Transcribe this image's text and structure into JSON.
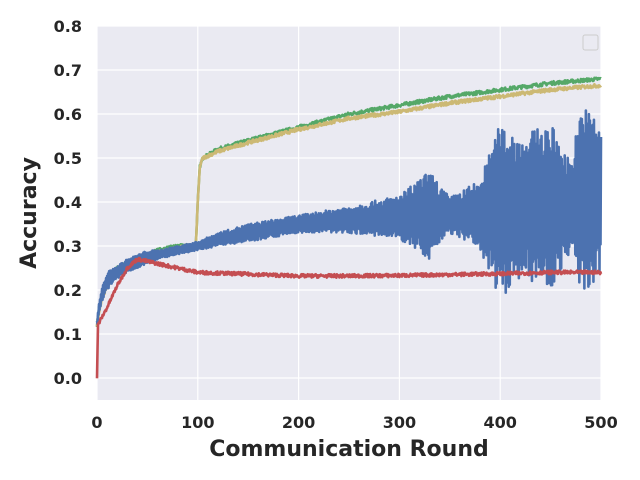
{
  "chart_data": {
    "type": "line",
    "title": "",
    "xlabel": "Communication Round",
    "ylabel": "Accuracy",
    "xlim": [
      0,
      500
    ],
    "ylim": [
      -0.05,
      0.8
    ],
    "x_ticks": [
      0,
      100,
      200,
      300,
      400,
      500
    ],
    "y_ticks": [
      0.0,
      0.1,
      0.2,
      0.3,
      0.4,
      0.5,
      0.6,
      0.7,
      0.8
    ],
    "x_tick_labels": [
      "0",
      "100",
      "200",
      "300",
      "400",
      "500"
    ],
    "y_tick_labels": [
      "0.0",
      "0.1",
      "0.2",
      "0.3",
      "0.4",
      "0.5",
      "0.6",
      "0.7",
      "0.8"
    ],
    "grid": true,
    "legend": "top-right, empty",
    "background": "#eaeaf2",
    "series": [
      {
        "color": "#55a868",
        "style": "mild noise",
        "x": [
          0,
          2,
          5,
          10,
          20,
          30,
          40,
          50,
          60,
          70,
          80,
          90,
          98,
          100,
          102,
          105,
          120,
          150,
          200,
          250,
          300,
          350,
          400,
          450,
          500
        ],
        "y": [
          0.12,
          0.16,
          0.19,
          0.22,
          0.25,
          0.26,
          0.27,
          0.28,
          0.29,
          0.295,
          0.3,
          0.3,
          0.3,
          0.4,
          0.48,
          0.5,
          0.52,
          0.54,
          0.57,
          0.6,
          0.62,
          0.64,
          0.655,
          0.67,
          0.68
        ]
      },
      {
        "color": "#ccb974",
        "style": "mild noise",
        "x": [
          0,
          2,
          5,
          10,
          20,
          30,
          40,
          50,
          60,
          70,
          80,
          90,
          98,
          100,
          102,
          105,
          120,
          150,
          200,
          250,
          300,
          350,
          400,
          450,
          500
        ],
        "y": [
          0.12,
          0.15,
          0.18,
          0.21,
          0.24,
          0.25,
          0.265,
          0.275,
          0.285,
          0.29,
          0.295,
          0.3,
          0.3,
          0.4,
          0.48,
          0.5,
          0.515,
          0.535,
          0.565,
          0.59,
          0.605,
          0.625,
          0.64,
          0.655,
          0.665
        ]
      },
      {
        "color": "#4c72b0",
        "style": "oscillating, growing amplitude",
        "x": [
          0,
          2,
          5,
          10,
          20,
          30,
          40,
          50,
          60,
          70,
          80,
          90,
          100,
          120,
          150,
          200,
          250,
          300,
          330,
          350,
          380,
          400,
          420,
          450,
          470,
          480,
          500
        ],
        "y": [
          0.12,
          0.16,
          0.19,
          0.22,
          0.24,
          0.255,
          0.265,
          0.275,
          0.28,
          0.285,
          0.29,
          0.295,
          0.3,
          0.315,
          0.33,
          0.35,
          0.36,
          0.365,
          0.37,
          0.37,
          0.37,
          0.38,
          0.39,
          0.39,
          0.39,
          0.4,
          0.41
        ],
        "amplitude": [
          0.01,
          0.01,
          0.015,
          0.02,
          0.015,
          0.015,
          0.015,
          0.015,
          0.01,
          0.01,
          0.01,
          0.01,
          0.01,
          0.015,
          0.02,
          0.02,
          0.03,
          0.05,
          0.1,
          0.04,
          0.08,
          0.2,
          0.16,
          0.19,
          0.1,
          0.22,
          0.18
        ]
      },
      {
        "color": "#c44e52",
        "style": "mild noise",
        "x": [
          0,
          1,
          3,
          10,
          20,
          30,
          40,
          50,
          60,
          70,
          80,
          90,
          100,
          150,
          200,
          250,
          300,
          350,
          400,
          450,
          500
        ],
        "y": [
          0.0,
          0.12,
          0.13,
          0.16,
          0.21,
          0.25,
          0.27,
          0.265,
          0.26,
          0.255,
          0.25,
          0.245,
          0.24,
          0.236,
          0.232,
          0.232,
          0.233,
          0.235,
          0.237,
          0.24,
          0.24
        ]
      }
    ]
  }
}
